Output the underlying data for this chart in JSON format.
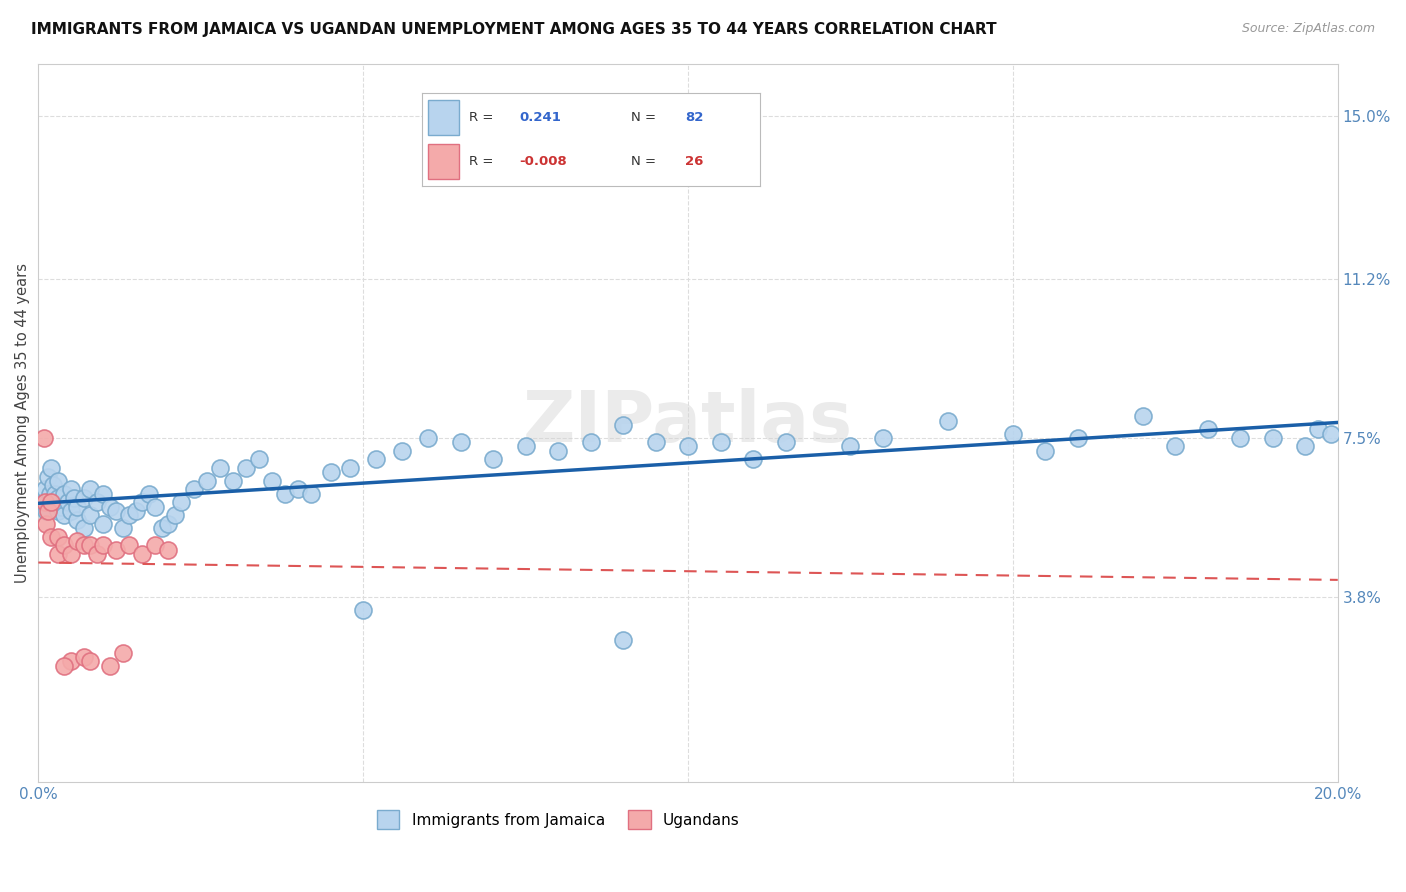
{
  "title": "IMMIGRANTS FROM JAMAICA VS UGANDAN UNEMPLOYMENT AMONG AGES 35 TO 44 YEARS CORRELATION CHART",
  "source": "Source: ZipAtlas.com",
  "ylabel": "Unemployment Among Ages 35 to 44 years",
  "xlim": [
    0.0,
    0.2
  ],
  "ylim": [
    -0.005,
    0.162
  ],
  "xticks": [
    0.0,
    0.05,
    0.1,
    0.15,
    0.2
  ],
  "xticklabels": [
    "0.0%",
    "",
    "",
    "",
    "20.0%"
  ],
  "ytick_labels_right": [
    "15.0%",
    "11.2%",
    "7.5%",
    "3.8%"
  ],
  "ytick_values_right": [
    0.15,
    0.112,
    0.075,
    0.038
  ],
  "r_jamaica": 0.241,
  "n_jamaica": 82,
  "r_ugandan": -0.008,
  "n_ugandan": 26,
  "jamaica_color": "#b8d4ee",
  "jamaica_edge": "#7aabce",
  "ugandan_color": "#f4aaaa",
  "ugandan_edge": "#e07080",
  "trendline_jamaica_color": "#1a5fa8",
  "trendline_ugandan_color": "#dd5555",
  "watermark": "ZIPatlas",
  "legend_labels": [
    "Immigrants from Jamaica",
    "Ugandans"
  ],
  "jamaica_x": [
    0.0008,
    0.001,
    0.0012,
    0.0015,
    0.0018,
    0.002,
    0.002,
    0.0022,
    0.0025,
    0.003,
    0.003,
    0.003,
    0.0035,
    0.004,
    0.004,
    0.0045,
    0.005,
    0.005,
    0.0055,
    0.006,
    0.006,
    0.007,
    0.007,
    0.008,
    0.008,
    0.009,
    0.01,
    0.01,
    0.011,
    0.012,
    0.013,
    0.014,
    0.015,
    0.016,
    0.017,
    0.018,
    0.019,
    0.02,
    0.021,
    0.022,
    0.024,
    0.026,
    0.028,
    0.03,
    0.032,
    0.034,
    0.036,
    0.038,
    0.04,
    0.042,
    0.045,
    0.048,
    0.052,
    0.056,
    0.06,
    0.065,
    0.07,
    0.075,
    0.08,
    0.085,
    0.09,
    0.095,
    0.1,
    0.105,
    0.11,
    0.115,
    0.125,
    0.13,
    0.14,
    0.15,
    0.155,
    0.16,
    0.17,
    0.175,
    0.18,
    0.185,
    0.19,
    0.195,
    0.197,
    0.199,
    0.05,
    0.09
  ],
  "jamaica_y": [
    0.06,
    0.063,
    0.058,
    0.066,
    0.062,
    0.06,
    0.068,
    0.064,
    0.062,
    0.058,
    0.061,
    0.065,
    0.059,
    0.057,
    0.062,
    0.06,
    0.058,
    0.063,
    0.061,
    0.056,
    0.059,
    0.054,
    0.061,
    0.057,
    0.063,
    0.06,
    0.055,
    0.062,
    0.059,
    0.058,
    0.054,
    0.057,
    0.058,
    0.06,
    0.062,
    0.059,
    0.054,
    0.055,
    0.057,
    0.06,
    0.063,
    0.065,
    0.068,
    0.065,
    0.068,
    0.07,
    0.065,
    0.062,
    0.063,
    0.062,
    0.067,
    0.068,
    0.07,
    0.072,
    0.075,
    0.074,
    0.07,
    0.073,
    0.072,
    0.074,
    0.078,
    0.074,
    0.073,
    0.074,
    0.07,
    0.074,
    0.073,
    0.075,
    0.079,
    0.076,
    0.072,
    0.075,
    0.08,
    0.073,
    0.077,
    0.075,
    0.075,
    0.073,
    0.077,
    0.076,
    0.035,
    0.028
  ],
  "ugandan_x": [
    0.0008,
    0.001,
    0.0012,
    0.0015,
    0.002,
    0.002,
    0.003,
    0.003,
    0.004,
    0.005,
    0.006,
    0.007,
    0.008,
    0.009,
    0.01,
    0.012,
    0.014,
    0.016,
    0.018,
    0.02,
    0.005,
    0.004,
    0.007,
    0.008,
    0.011,
    0.013
  ],
  "ugandan_y": [
    0.075,
    0.06,
    0.055,
    0.058,
    0.052,
    0.06,
    0.052,
    0.048,
    0.05,
    0.048,
    0.051,
    0.05,
    0.05,
    0.048,
    0.05,
    0.049,
    0.05,
    0.048,
    0.05,
    0.049,
    0.023,
    0.022,
    0.024,
    0.023,
    0.022,
    0.025
  ]
}
